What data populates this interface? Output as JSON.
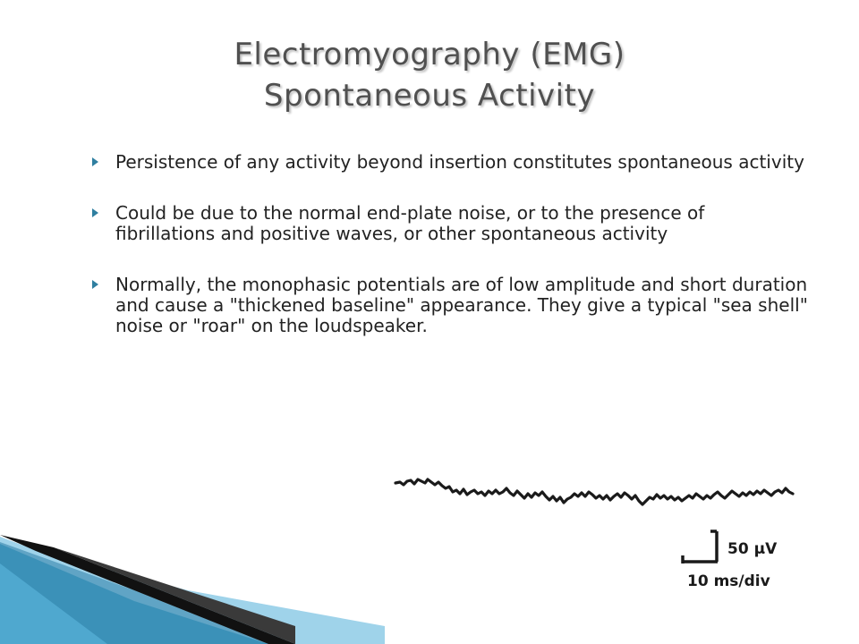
{
  "slide": {
    "title_line1": "Electromyography (EMG)",
    "title_line2": "Spontaneous Activity",
    "bullets": [
      "Persistence of any activity beyond insertion constitutes spontaneous activity",
      "Could be due to the normal end-plate noise, or to the presence of fibrillations and positive waves, or other spontaneous activity",
      "Normally, the monophasic potentials are of low amplitude and short duration and cause a \"thickened baseline\" appearance. They give a typical \"sea shell\" noise or \"roar\" on the loudspeaker."
    ]
  },
  "figure": {
    "amplitude_scale_label": "50 µV",
    "time_scale_label": "10 ms/div"
  },
  "colors": {
    "title": "#505050",
    "bullet_marker": "#2f7fa0",
    "text": "#222222",
    "decoration_blue": "#4fa8cf"
  }
}
